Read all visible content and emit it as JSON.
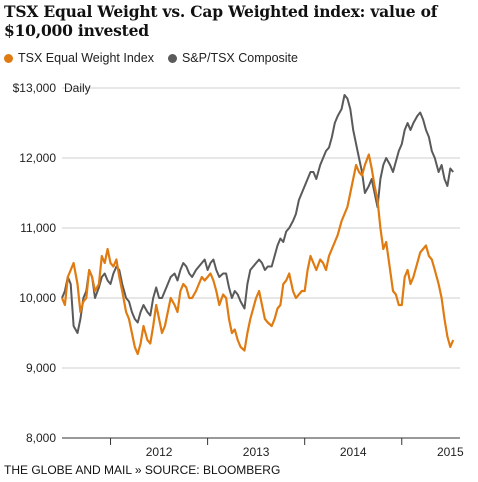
{
  "title": "TSX Equal Weight vs. Cap Weighted index: value of $10,000 invested",
  "footer": "THE GLOBE AND MAIL » SOURCE: BLOOMBERG",
  "colors": {
    "equal_weight": "#e07b12",
    "composite": "#5a5a5a",
    "gridline": "#cfcfcf",
    "axis": "#333333"
  },
  "chart_data": {
    "type": "line",
    "title": "TSX Equal Weight vs. Cap Weighted index: value of $10,000 invested",
    "frequency_label": "Daily",
    "x_unit": "year",
    "xlim": [
      2011.5,
      2015.6
    ],
    "ylim": [
      8000,
      13000
    ],
    "y_ticks": [
      {
        "value": 13000,
        "label": "$13,000"
      },
      {
        "value": 12000,
        "label": "12,000"
      },
      {
        "value": 11000,
        "label": "11,000"
      },
      {
        "value": 10000,
        "label": "10,000"
      },
      {
        "value": 9000,
        "label": "9,000"
      },
      {
        "value": 8000,
        "label": "8,000"
      }
    ],
    "x_ticks": [
      {
        "value": 2012.0,
        "label": "2012"
      },
      {
        "value": 2013.0,
        "label": "2013"
      },
      {
        "value": 2014.0,
        "label": "2014"
      },
      {
        "value": 2015.0,
        "label": "2015"
      }
    ],
    "grid": "horizontal",
    "legend_position": "top-left",
    "series": [
      {
        "name": "TSX Equal Weight Index",
        "color": "#e07b12",
        "x": [
          2011.5,
          2011.53,
          2011.56,
          2011.59,
          2011.62,
          2011.66,
          2011.69,
          2011.72,
          2011.75,
          2011.78,
          2011.81,
          2011.84,
          2011.88,
          2011.91,
          2011.94,
          2011.97,
          2012.0,
          2012.03,
          2012.06,
          2012.09,
          2012.12,
          2012.16,
          2012.19,
          2012.22,
          2012.25,
          2012.28,
          2012.31,
          2012.34,
          2012.38,
          2012.41,
          2012.44,
          2012.47,
          2012.5,
          2012.53,
          2012.56,
          2012.59,
          2012.62,
          2012.66,
          2012.69,
          2012.72,
          2012.75,
          2012.78,
          2012.81,
          2012.84,
          2012.88,
          2012.91,
          2012.94,
          2012.97,
          2013.0,
          2013.03,
          2013.06,
          2013.09,
          2013.12,
          2013.16,
          2013.19,
          2013.22,
          2013.25,
          2013.28,
          2013.31,
          2013.34,
          2013.38,
          2013.41,
          2013.44,
          2013.47,
          2013.5,
          2013.53,
          2013.56,
          2013.59,
          2013.62,
          2013.66,
          2013.69,
          2013.72,
          2013.75,
          2013.78,
          2013.81,
          2013.84,
          2013.88,
          2013.91,
          2013.94,
          2013.97,
          2014.0,
          2014.03,
          2014.06,
          2014.09,
          2014.12,
          2014.16,
          2014.19,
          2014.22,
          2014.25,
          2014.28,
          2014.31,
          2014.34,
          2014.38,
          2014.41,
          2014.44,
          2014.47,
          2014.5,
          2014.53,
          2014.56,
          2014.59,
          2014.62,
          2014.66,
          2014.69,
          2014.72,
          2014.75,
          2014.78,
          2014.81,
          2014.84,
          2014.88,
          2014.91,
          2014.94,
          2014.97,
          2015.0,
          2015.03,
          2015.06,
          2015.09,
          2015.12,
          2015.16,
          2015.19,
          2015.22,
          2015.25,
          2015.28,
          2015.31,
          2015.34,
          2015.38,
          2015.41,
          2015.44,
          2015.47,
          2015.5,
          2015.53
        ],
        "values": [
          10000,
          9900,
          10300,
          10400,
          10500,
          10200,
          9800,
          9950,
          10000,
          10400,
          10300,
          10100,
          10200,
          10600,
          10500,
          10700,
          10500,
          10450,
          10550,
          10300,
          10100,
          9800,
          9700,
          9500,
          9300,
          9200,
          9350,
          9600,
          9400,
          9350,
          9600,
          9900,
          9700,
          9500,
          9600,
          9800,
          10000,
          9900,
          9800,
          10100,
          10200,
          10150,
          10000,
          10000,
          10100,
          10200,
          10300,
          10250,
          10300,
          10350,
          10250,
          10100,
          9900,
          10050,
          10000,
          9700,
          9500,
          9550,
          9400,
          9300,
          9250,
          9500,
          9700,
          9850,
          10000,
          10100,
          9900,
          9700,
          9650,
          9600,
          9700,
          9850,
          9900,
          10200,
          10250,
          10350,
          10100,
          10000,
          10050,
          10100,
          10100,
          10400,
          10600,
          10500,
          10400,
          10550,
          10500,
          10400,
          10600,
          10700,
          10800,
          10900,
          11100,
          11200,
          11300,
          11500,
          11700,
          11900,
          11800,
          11750,
          11900,
          12050,
          11850,
          11600,
          11400,
          11000,
          10700,
          10800,
          10400,
          10100,
          10050,
          9900,
          9900,
          10300,
          10400,
          10200,
          10300,
          10500,
          10650,
          10700,
          10750,
          10600,
          10550,
          10400,
          10200,
          10000,
          9700,
          9450,
          9300,
          9400
        ]
      },
      {
        "name": "S&P/TSX Composite",
        "color": "#5a5a5a",
        "x": [
          2011.5,
          2011.53,
          2011.56,
          2011.59,
          2011.62,
          2011.66,
          2011.69,
          2011.72,
          2011.75,
          2011.78,
          2011.81,
          2011.84,
          2011.88,
          2011.91,
          2011.94,
          2011.97,
          2012.0,
          2012.03,
          2012.06,
          2012.09,
          2012.12,
          2012.16,
          2012.19,
          2012.22,
          2012.25,
          2012.28,
          2012.31,
          2012.34,
          2012.38,
          2012.41,
          2012.44,
          2012.47,
          2012.5,
          2012.53,
          2012.56,
          2012.59,
          2012.62,
          2012.66,
          2012.69,
          2012.72,
          2012.75,
          2012.78,
          2012.81,
          2012.84,
          2012.88,
          2012.91,
          2012.94,
          2012.97,
          2013.0,
          2013.03,
          2013.06,
          2013.09,
          2013.12,
          2013.16,
          2013.19,
          2013.22,
          2013.25,
          2013.28,
          2013.31,
          2013.34,
          2013.38,
          2013.41,
          2013.44,
          2013.47,
          2013.5,
          2013.53,
          2013.56,
          2013.59,
          2013.62,
          2013.66,
          2013.69,
          2013.72,
          2013.75,
          2013.78,
          2013.81,
          2013.84,
          2013.88,
          2013.91,
          2013.94,
          2013.97,
          2014.0,
          2014.03,
          2014.06,
          2014.09,
          2014.12,
          2014.16,
          2014.19,
          2014.22,
          2014.25,
          2014.28,
          2014.31,
          2014.34,
          2014.38,
          2014.41,
          2014.44,
          2014.47,
          2014.5,
          2014.53,
          2014.56,
          2014.59,
          2014.62,
          2014.66,
          2014.69,
          2014.72,
          2014.75,
          2014.78,
          2014.81,
          2014.84,
          2014.88,
          2014.91,
          2014.94,
          2014.97,
          2015.0,
          2015.03,
          2015.06,
          2015.09,
          2015.12,
          2015.16,
          2015.19,
          2015.22,
          2015.25,
          2015.28,
          2015.31,
          2015.34,
          2015.38,
          2015.41,
          2015.44,
          2015.47,
          2015.5,
          2015.53
        ],
        "values": [
          10000,
          10100,
          10300,
          10200,
          9600,
          9500,
          9700,
          10000,
          10100,
          10400,
          10300,
          10000,
          10150,
          10300,
          10350,
          10250,
          10200,
          10350,
          10450,
          10400,
          10200,
          10000,
          9950,
          9800,
          9700,
          9650,
          9800,
          9900,
          9800,
          9750,
          10000,
          10150,
          10000,
          10000,
          10100,
          10200,
          10300,
          10350,
          10250,
          10400,
          10500,
          10450,
          10350,
          10300,
          10400,
          10450,
          10500,
          10550,
          10400,
          10500,
          10550,
          10400,
          10300,
          10350,
          10350,
          10150,
          10000,
          10100,
          10050,
          9950,
          9850,
          10200,
          10400,
          10450,
          10500,
          10550,
          10500,
          10400,
          10450,
          10450,
          10600,
          10750,
          10850,
          10800,
          10950,
          11000,
          11100,
          11200,
          11400,
          11500,
          11600,
          11700,
          11800,
          11800,
          11700,
          11900,
          12000,
          12100,
          12150,
          12300,
          12500,
          12600,
          12700,
          12900,
          12850,
          12700,
          12400,
          12200,
          12000,
          11800,
          11500,
          11600,
          11700,
          11500,
          11300,
          11700,
          11900,
          12000,
          11900,
          11800,
          11950,
          12100,
          12200,
          12400,
          12500,
          12400,
          12500,
          12600,
          12650,
          12550,
          12400,
          12300,
          12100,
          12000,
          11800,
          11900,
          11700,
          11600,
          11850,
          11800
        ]
      }
    ]
  }
}
